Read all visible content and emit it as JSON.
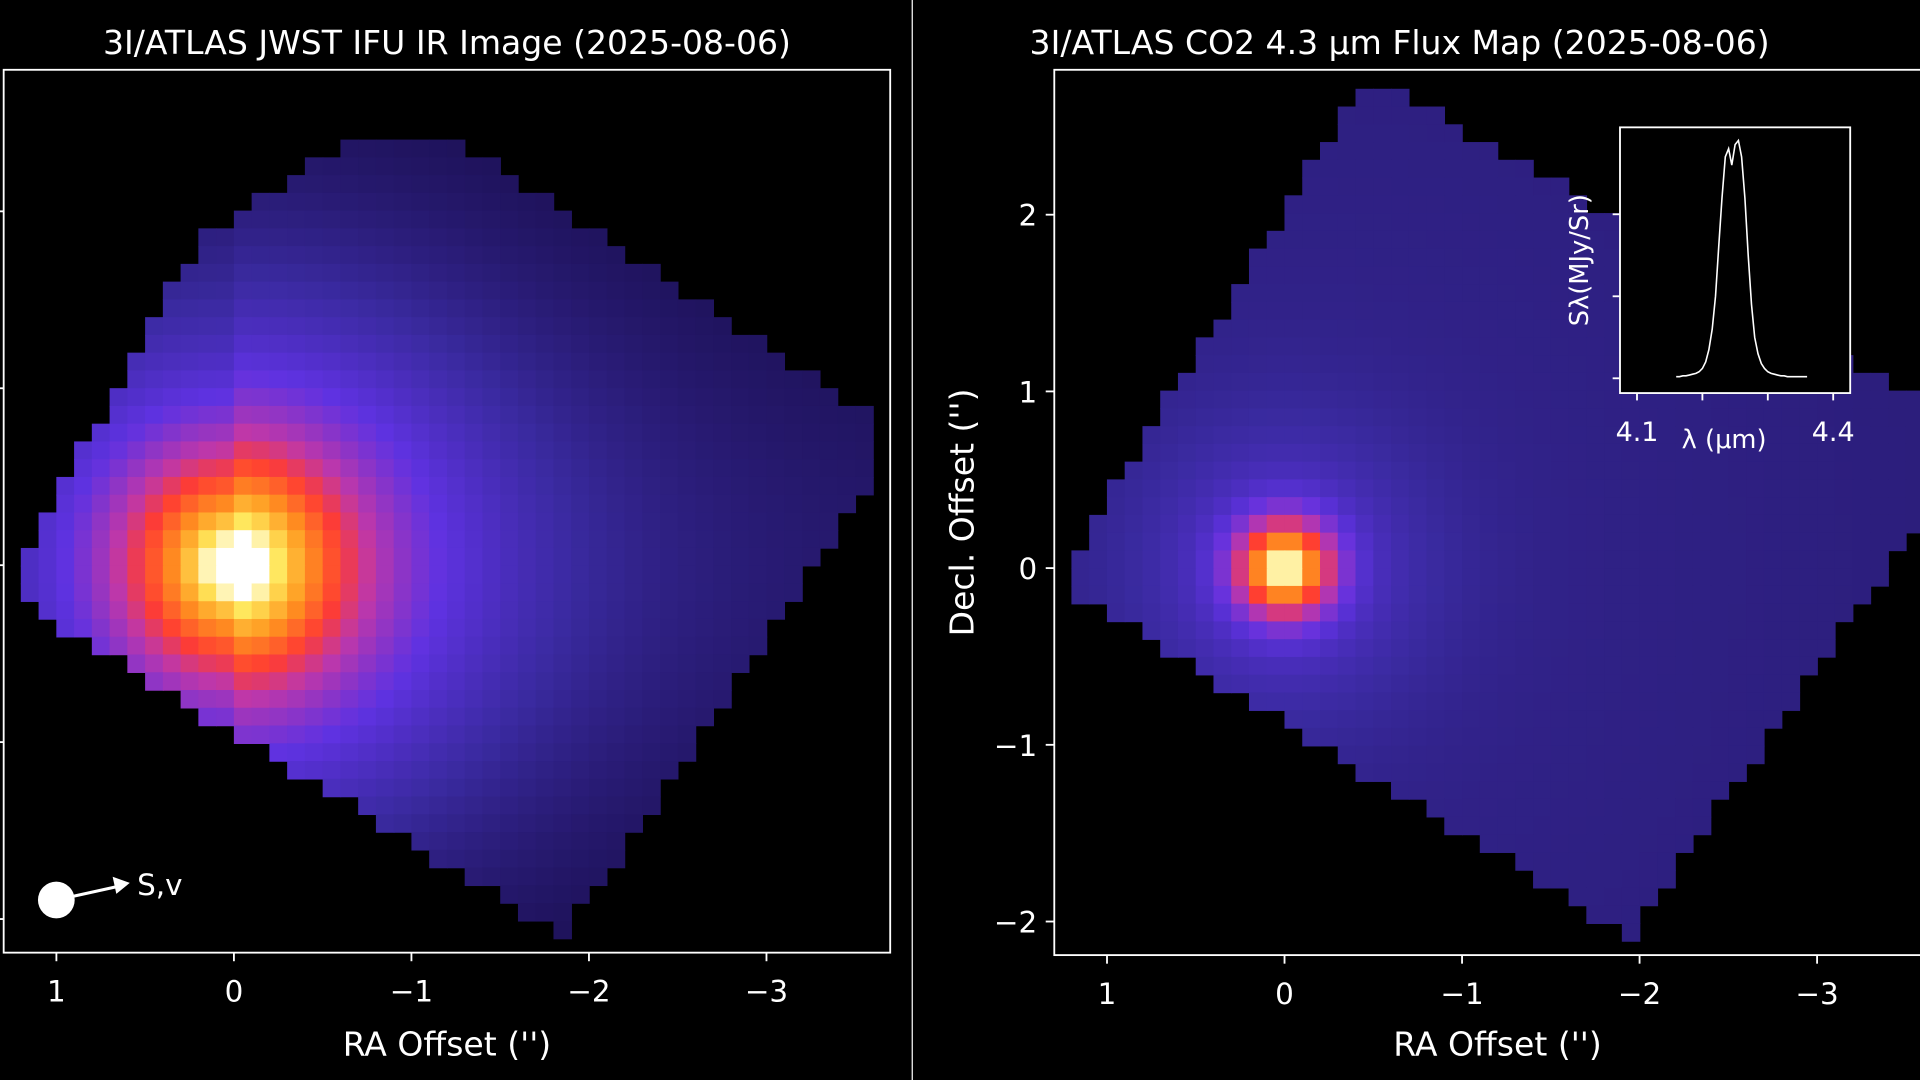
{
  "chart_data": [
    {
      "type": "heatmap",
      "title": "3I/ATLAS JWST IFU IR Image (2025-08-06)",
      "x_label": "RA Offset ('')",
      "xlim": [
        1.297,
        -3.697
      ],
      "xticks": [
        1,
        0,
        {
          "value": -1,
          "label": "−1"
        },
        {
          "value": -2,
          "label": "−2"
        },
        {
          "value": -3,
          "label": "−3"
        }
      ],
      "ylim": [
        -2.19,
        2.8
      ],
      "yticks": [
        -2,
        -1,
        0,
        1,
        2
      ],
      "ytick_labels": false,
      "annotation": "S,v"
    },
    {
      "type": "heatmap",
      "title": "3I/ATLAS CO2 4.3 μm Flux Map (2025-08-06)",
      "x_label": "RA Offset ('')",
      "y_label": "Decl. Offset ('')",
      "xlim": [
        1.297,
        -3.697
      ],
      "xticks": [
        1,
        0,
        {
          "value": -1,
          "label": "−1"
        },
        {
          "value": -2,
          "label": "−2"
        },
        {
          "value": -3,
          "label": "−3"
        }
      ],
      "ylim": [
        -2.19,
        2.82
      ],
      "yticks": [
        {
          "value": -2,
          "label": "−2"
        },
        {
          "value": -1,
          "label": "−1"
        },
        0,
        1,
        2
      ],
      "ytick_labels": true,
      "inset": {
        "type": "line",
        "x_label": "λ (μm)",
        "y_label": "Sλ(MJy/Sr)",
        "xlim": [
          4.074,
          4.426
        ],
        "xticks": [
          4.1,
          4.4
        ],
        "minor_xticks": [
          4.2,
          4.3
        ],
        "ylim": [
          -0.18,
          3.06
        ],
        "yticks": [
          0,
          1,
          2
        ],
        "x": [
          4.16,
          4.165,
          4.17,
          4.175,
          4.18,
          4.185,
          4.19,
          4.195,
          4.2,
          4.205,
          4.21,
          4.215,
          4.22,
          4.225,
          4.23,
          4.235,
          4.24,
          4.245,
          4.25,
          4.255,
          4.26,
          4.265,
          4.27,
          4.275,
          4.28,
          4.285,
          4.29,
          4.295,
          4.3,
          4.305,
          4.31,
          4.315,
          4.32,
          4.325,
          4.33,
          4.335,
          4.34,
          4.345,
          4.35,
          4.355,
          4.36
        ],
        "values": [
          0.02,
          0.02,
          0.03,
          0.03,
          0.04,
          0.05,
          0.06,
          0.08,
          0.12,
          0.2,
          0.35,
          0.6,
          1.0,
          1.6,
          2.2,
          2.7,
          2.8,
          2.6,
          2.85,
          2.9,
          2.7,
          2.2,
          1.5,
          0.9,
          0.5,
          0.3,
          0.18,
          0.12,
          0.08,
          0.06,
          0.05,
          0.04,
          0.03,
          0.03,
          0.02,
          0.02,
          0.02,
          0.02,
          0.02,
          0.02,
          0.02
        ]
      }
    }
  ]
}
